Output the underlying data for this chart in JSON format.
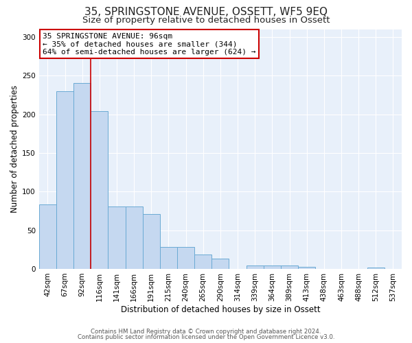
{
  "title": "35, SPRINGSTONE AVENUE, OSSETT, WF5 9EQ",
  "subtitle": "Size of property relative to detached houses in Ossett",
  "xlabel": "Distribution of detached houses by size in Ossett",
  "ylabel": "Number of detached properties",
  "bar_labels": [
    "42sqm",
    "67sqm",
    "92sqm",
    "116sqm",
    "141sqm",
    "166sqm",
    "191sqm",
    "215sqm",
    "240sqm",
    "265sqm",
    "290sqm",
    "314sqm",
    "339sqm",
    "364sqm",
    "389sqm",
    "413sqm",
    "438sqm",
    "463sqm",
    "488sqm",
    "512sqm",
    "537sqm"
  ],
  "bar_values": [
    83,
    230,
    240,
    204,
    81,
    81,
    71,
    28,
    28,
    19,
    13,
    0,
    4,
    4,
    4,
    3,
    0,
    0,
    0,
    2,
    0
  ],
  "bar_color": "#c5d8f0",
  "bar_edge_color": "#6aaad4",
  "annotation_text": "35 SPRINGSTONE AVENUE: 96sqm\n← 35% of detached houses are smaller (344)\n64% of semi-detached houses are larger (624) →",
  "annotation_box_color": "#ffffff",
  "annotation_box_edge_color": "#cc0000",
  "red_line_x": 2.5,
  "ylim": [
    0,
    310
  ],
  "yticks": [
    0,
    50,
    100,
    150,
    200,
    250,
    300
  ],
  "bg_color": "#e8f0fa",
  "footer_line1": "Contains HM Land Registry data © Crown copyright and database right 2024.",
  "footer_line2": "Contains public sector information licensed under the Open Government Licence v3.0.",
  "title_fontsize": 11,
  "subtitle_fontsize": 9.5,
  "axis_label_fontsize": 8.5,
  "tick_fontsize": 7.5,
  "annot_fontsize": 8
}
